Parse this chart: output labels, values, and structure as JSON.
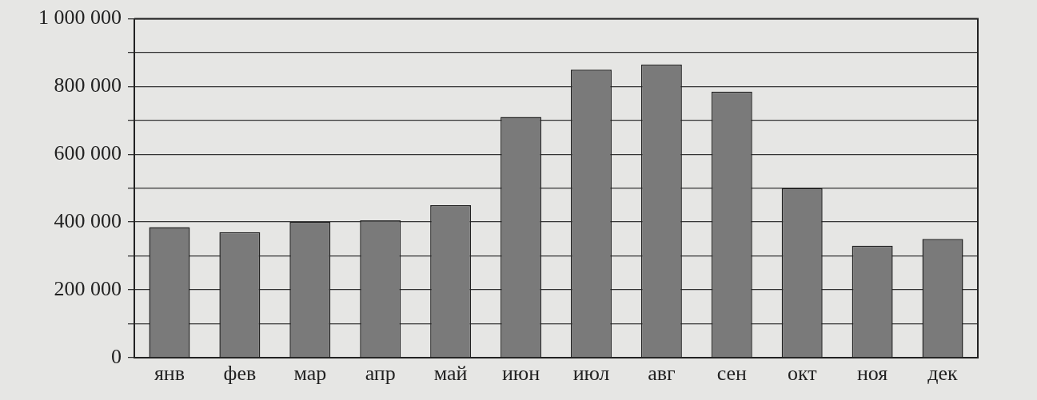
{
  "chart_data": {
    "type": "bar",
    "categories": [
      "янв",
      "фев",
      "мар",
      "апр",
      "май",
      "июн",
      "июл",
      "авг",
      "сен",
      "окт",
      "ноя",
      "дек"
    ],
    "values": [
      385000,
      370000,
      400000,
      405000,
      450000,
      710000,
      850000,
      865000,
      785000,
      500000,
      330000,
      350000
    ],
    "color": "#7a7a7a",
    "ylim": [
      0,
      1000000
    ],
    "yticks": [
      {
        "value": 0,
        "label": "0"
      },
      {
        "value": 100000,
        "label": null
      },
      {
        "value": 200000,
        "label": "200 000"
      },
      {
        "value": 300000,
        "label": null
      },
      {
        "value": 400000,
        "label": "400 000"
      },
      {
        "value": 500000,
        "label": null
      },
      {
        "value": 600000,
        "label": "600 000"
      },
      {
        "value": 700000,
        "label": null
      },
      {
        "value": 800000,
        "label": "800 000"
      },
      {
        "value": 900000,
        "label": null
      },
      {
        "value": 1000000,
        "label": "1 000 000"
      }
    ],
    "grid": true
  }
}
